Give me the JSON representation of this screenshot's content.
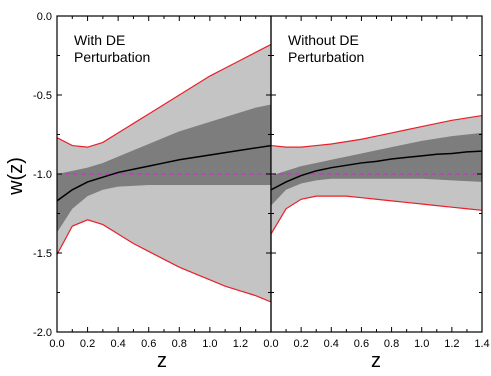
{
  "chart_data": {
    "type": "area",
    "ylabel": "w(z)",
    "ylim": [
      -2.0,
      0.0
    ],
    "xlim": [
      0.0,
      1.4
    ],
    "yticks": [
      "0.0",
      "-0.5",
      "-1.0",
      "-1.5",
      "-2.0"
    ],
    "ytick_values": [
      0.0,
      -0.5,
      -1.0,
      -1.5,
      -2.0
    ],
    "reference_line": {
      "y": -1.0,
      "style": "dashed",
      "color": "#cc33cc"
    },
    "colors": {
      "outer_band": "#c4c4c4",
      "inner_band": "#7d7d7d",
      "best_fit": "#000000",
      "bounds": "#e8202a"
    },
    "panels": [
      {
        "label_line1": "With DE",
        "label_line2": "Perturbation",
        "xlabel": "z",
        "xticks": [
          "0.0",
          "0.2",
          "0.4",
          "0.6",
          "0.8",
          "1.0",
          "1.2"
        ],
        "xtick_values": [
          0.0,
          0.2,
          0.4,
          0.6,
          0.8,
          1.0,
          1.2
        ],
        "x": [
          0.0,
          0.1,
          0.2,
          0.3,
          0.4,
          0.5,
          0.6,
          0.7,
          0.8,
          0.9,
          1.0,
          1.1,
          1.2,
          1.3,
          1.4
        ],
        "best_fit": [
          -1.17,
          -1.1,
          -1.05,
          -1.02,
          -0.99,
          -0.97,
          -0.95,
          -0.93,
          -0.91,
          -0.895,
          -0.88,
          -0.865,
          -0.85,
          -0.835,
          -0.82
        ],
        "outer_upper": [
          -0.77,
          -0.82,
          -0.83,
          -0.8,
          -0.74,
          -0.68,
          -0.62,
          -0.56,
          -0.5,
          -0.44,
          -0.38,
          -0.33,
          -0.28,
          -0.23,
          -0.18
        ],
        "outer_lower": [
          -1.51,
          -1.33,
          -1.29,
          -1.32,
          -1.38,
          -1.44,
          -1.49,
          -1.54,
          -1.59,
          -1.63,
          -1.67,
          -1.71,
          -1.74,
          -1.77,
          -1.81
        ],
        "inner_upper": [
          -1.0,
          -0.98,
          -0.96,
          -0.93,
          -0.89,
          -0.85,
          -0.81,
          -0.77,
          -0.73,
          -0.7,
          -0.67,
          -0.64,
          -0.61,
          -0.58,
          -0.56
        ],
        "inner_lower": [
          -1.37,
          -1.22,
          -1.14,
          -1.1,
          -1.08,
          -1.075,
          -1.07,
          -1.07,
          -1.07,
          -1.07,
          -1.07,
          -1.07,
          -1.07,
          -1.07,
          -1.07
        ]
      },
      {
        "label_line1": "Without DE",
        "label_line2": "Perturbation",
        "xlabel": "z",
        "xticks": [
          "0.0",
          "0.2",
          "0.4",
          "0.6",
          "0.8",
          "1.0",
          "1.2",
          "1.4"
        ],
        "xtick_values": [
          0.0,
          0.2,
          0.4,
          0.6,
          0.8,
          1.0,
          1.2,
          1.4
        ],
        "x": [
          0.0,
          0.1,
          0.2,
          0.3,
          0.4,
          0.5,
          0.6,
          0.7,
          0.8,
          0.9,
          1.0,
          1.1,
          1.2,
          1.3,
          1.4
        ],
        "best_fit": [
          -1.1,
          -1.05,
          -1.01,
          -0.98,
          -0.96,
          -0.945,
          -0.93,
          -0.92,
          -0.905,
          -0.895,
          -0.885,
          -0.875,
          -0.87,
          -0.86,
          -0.855
        ],
        "outer_upper": [
          -0.82,
          -0.83,
          -0.83,
          -0.82,
          -0.81,
          -0.795,
          -0.78,
          -0.76,
          -0.74,
          -0.72,
          -0.7,
          -0.68,
          -0.66,
          -0.645,
          -0.63
        ],
        "outer_lower": [
          -1.38,
          -1.22,
          -1.16,
          -1.14,
          -1.14,
          -1.14,
          -1.15,
          -1.16,
          -1.17,
          -1.18,
          -1.19,
          -1.2,
          -1.21,
          -1.22,
          -1.23
        ],
        "inner_upper": [
          -1.01,
          -0.98,
          -0.95,
          -0.93,
          -0.91,
          -0.89,
          -0.87,
          -0.85,
          -0.83,
          -0.81,
          -0.79,
          -0.775,
          -0.76,
          -0.75,
          -0.74
        ],
        "inner_lower": [
          -1.2,
          -1.1,
          -1.06,
          -1.04,
          -1.03,
          -1.03,
          -1.03,
          -1.03,
          -1.03,
          -1.03,
          -1.03,
          -1.035,
          -1.04,
          -1.045,
          -1.05
        ]
      }
    ]
  }
}
